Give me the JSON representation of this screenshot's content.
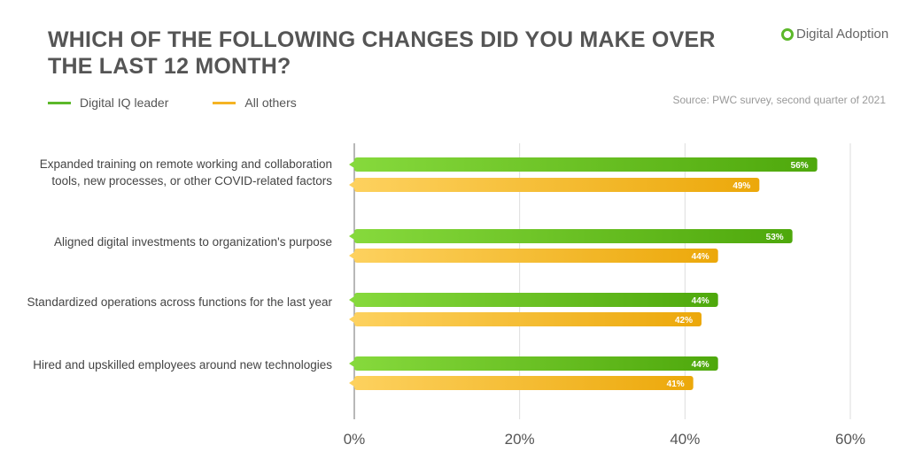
{
  "title": "WHICH OF THE FOLLOWING CHANGES DID YOU MAKE OVER THE LAST 12 MONTH?",
  "logo": "Digital Adoption",
  "source": "Source: PWC survey, second quarter of 2021",
  "chart_data": {
    "type": "bar",
    "orientation": "horizontal",
    "title": "WHICH OF THE FOLLOWING CHANGES DID YOU MAKE OVER THE LAST 12 MONTH?",
    "categories": [
      "Expanded training on remote working and collaboration tools, new processes, or other COVID-related factors",
      "Aligned digital investments to organization's purpose",
      "Standardized operations across functions for the last year",
      "Hired and upskilled employees around new technologies"
    ],
    "series": [
      {
        "name": "Digital IQ leader",
        "color": "#5cb82a",
        "values": [
          56,
          53,
          44,
          44
        ]
      },
      {
        "name": "All others",
        "color": "#f5b323",
        "values": [
          49,
          44,
          42,
          41
        ]
      }
    ],
    "xlim": [
      0,
      60
    ],
    "xticks": [
      "0%",
      "20%",
      "40%",
      "60%"
    ],
    "grid": true,
    "legend": "top-left"
  }
}
